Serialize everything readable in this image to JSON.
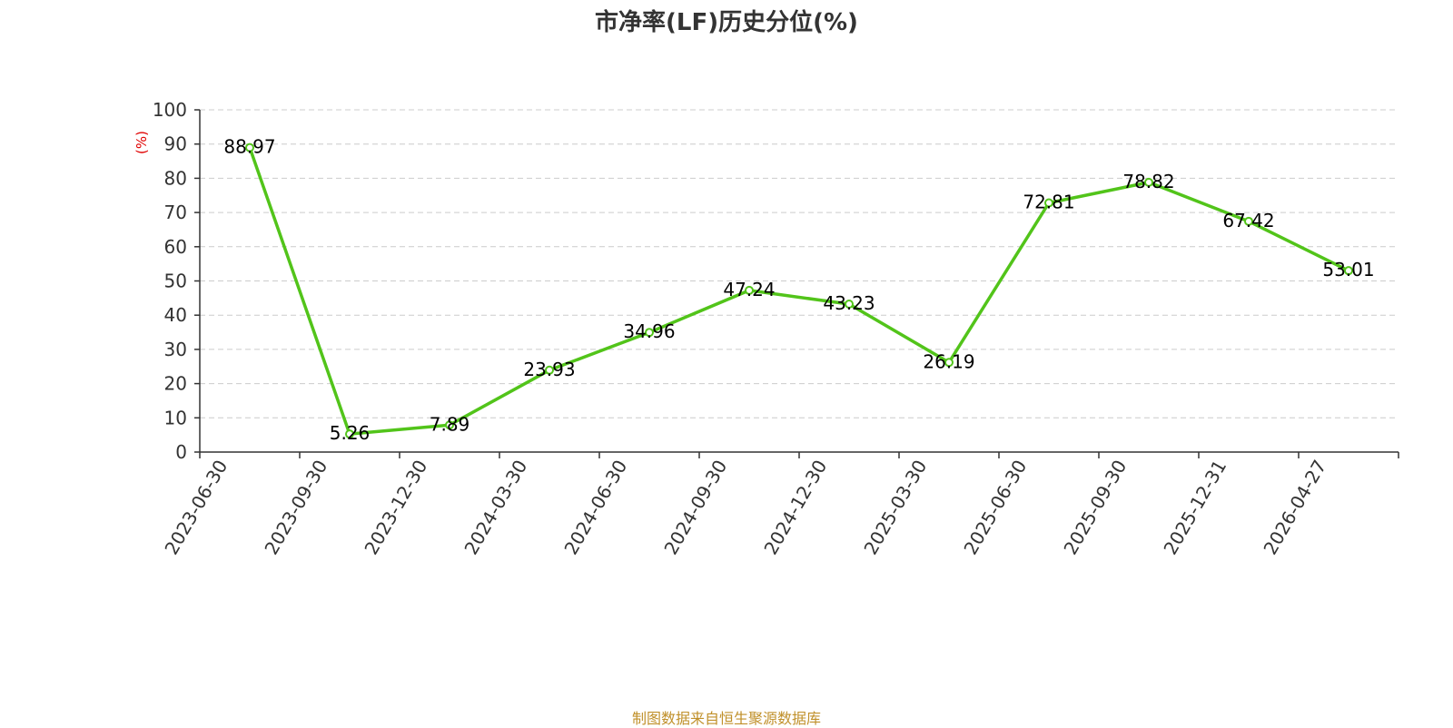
{
  "title": "市净率(LF)历史分位(%)",
  "source": "制图数据来自恒生聚源数据库",
  "y_unit": "(%)",
  "colors": {
    "line": "#52c41a",
    "unit": "#e00000",
    "grid": "#cccccc",
    "axis": "#333333",
    "source": "#c0902a"
  },
  "chart_data": {
    "type": "line",
    "title": "市净率(LF)历史分位(%)",
    "xlabel": "",
    "ylabel": "(%)",
    "ylim": [
      0,
      100
    ],
    "yticks": [
      0,
      10,
      20,
      30,
      40,
      50,
      60,
      70,
      80,
      90,
      100
    ],
    "grid": true,
    "categories": [
      "2023-06-30",
      "2023-09-30",
      "2023-12-30",
      "2024-03-30",
      "2024-06-30",
      "2024-09-30",
      "2024-12-30",
      "2025-03-30",
      "2025-06-30",
      "2025-09-30",
      "2025-12-31",
      "2026-04-27"
    ],
    "series": [
      {
        "values": [
          88.97,
          5.26,
          7.89,
          23.93,
          34.96,
          47.24,
          43.23,
          26.19,
          72.81,
          78.82,
          67.42,
          53.01
        ],
        "labels": [
          "88.97",
          "5.26",
          "7.89",
          "23.93",
          "34.96",
          "47.24",
          "43.23",
          "26.19",
          "72.81",
          "78.82",
          "67.42",
          "53.01"
        ]
      }
    ]
  }
}
